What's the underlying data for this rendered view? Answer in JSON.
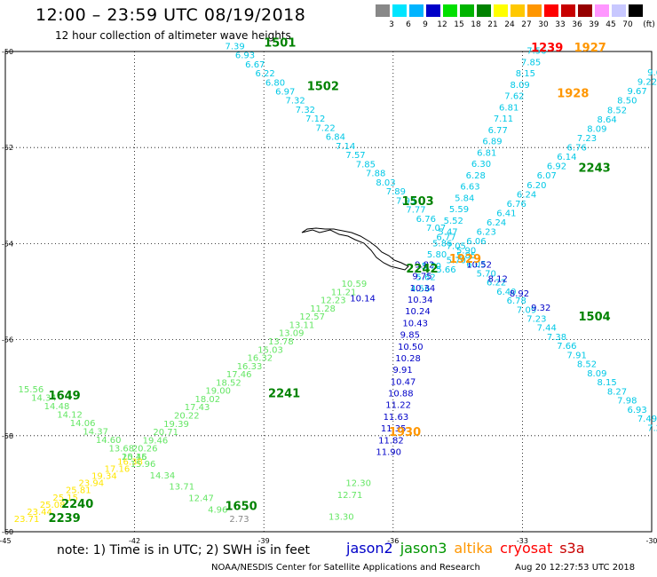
{
  "title": "12:00 – 23:59 UTC 08/19/2018",
  "subtitle": "12 hour collection of altimeter wave heights",
  "scale": {
    "unit": "(ft)",
    "bins": [
      {
        "label": "3",
        "color": "#888888"
      },
      {
        "label": "6",
        "color": "#00e5ff"
      },
      {
        "label": "9",
        "color": "#00b4ff"
      },
      {
        "label": "12",
        "color": "#0000c8"
      },
      {
        "label": "15",
        "color": "#00e000"
      },
      {
        "label": "18",
        "color": "#00b400"
      },
      {
        "label": "21",
        "color": "#008200"
      },
      {
        "label": "24",
        "color": "#ffff00"
      },
      {
        "label": "27",
        "color": "#ffc800"
      },
      {
        "label": "30",
        "color": "#ff9600"
      },
      {
        "label": "33",
        "color": "#ff0000"
      },
      {
        "label": "36",
        "color": "#c80000"
      },
      {
        "label": "39",
        "color": "#960000"
      },
      {
        "label": "45",
        "color": "#ff96ff"
      },
      {
        "label": "70",
        "color": "#c8c8ff"
      },
      {
        "label": "",
        "color": "#000000"
      }
    ]
  },
  "axes": {
    "lon_ticks": [
      "-45",
      "-42",
      "-39",
      "-36",
      "-33",
      "-30"
    ],
    "lat_ticks": [
      "-50",
      "-52",
      "-54",
      "-56",
      "-58",
      "-60"
    ]
  },
  "note": "note: 1) Time is in UTC; 2) SWH is in feet",
  "legend": [
    {
      "name": "jason2",
      "color": "#0000c8"
    },
    {
      "name": "jason3",
      "color": "#009600"
    },
    {
      "name": "altika",
      "color": "#ff9600"
    },
    {
      "name": "cryosat",
      "color": "#ff0000"
    },
    {
      "name": "s3a",
      "color": "#c80000"
    }
  ],
  "credit": "NOAA/NESDIS Center for Satellite Applications and Research",
  "credit_time": "Aug 20 12:27:53 UTC 2018",
  "time_labels": [
    {
      "text": "1501",
      "color": "#008200",
      "lon": -39.0,
      "lat": -49.9
    },
    {
      "text": "1502",
      "color": "#008200",
      "lon": -38.0,
      "lat": -50.8
    },
    {
      "text": "1503",
      "color": "#008200",
      "lon": -35.8,
      "lat": -53.2
    },
    {
      "text": "1239",
      "color": "#ff0000",
      "lon": -32.8,
      "lat": -50.0
    },
    {
      "text": "1927",
      "color": "#ff9600",
      "lon": -31.8,
      "lat": -50.0
    },
    {
      "text": "1928",
      "color": "#ff9600",
      "lon": -32.2,
      "lat": -50.95
    },
    {
      "text": "2243",
      "color": "#008200",
      "lon": -31.7,
      "lat": -52.5
    },
    {
      "text": "2242",
      "color": "#008200",
      "lon": -35.7,
      "lat": -54.6
    },
    {
      "text": "1929",
      "color": "#ff9600",
      "lon": -34.7,
      "lat": -54.4
    },
    {
      "text": "1504",
      "color": "#008200",
      "lon": -31.7,
      "lat": -55.6
    },
    {
      "text": "2241",
      "color": "#008200",
      "lon": -38.9,
      "lat": -57.2
    },
    {
      "text": "1930",
      "color": "#ff9600",
      "lon": -36.1,
      "lat": -58.0
    },
    {
      "text": "1649",
      "color": "#008200",
      "lon": -44.0,
      "lat": -57.25
    },
    {
      "text": "2240",
      "color": "#008200",
      "lon": -43.7,
      "lat": -59.5
    },
    {
      "text": "2239",
      "color": "#008200",
      "lon": -44.0,
      "lat": -59.8
    },
    {
      "text": "1650",
      "color": "#008200",
      "lon": -39.9,
      "lat": -59.55
    }
  ],
  "tracks": [
    {
      "name": "track-1501",
      "color": "#00c8e6",
      "start": [
        -39.9,
        -49.95
      ],
      "end": [
        -30.1,
        -57.9
      ],
      "values": [
        "7.39",
        "6.93",
        "6.67",
        "6.22",
        "6.80",
        "6.97",
        "7.32",
        "7.32",
        "7.12",
        "7.22",
        "6.84",
        "7.14",
        "7.57",
        "7.85",
        "7.88",
        "8.03",
        "7.89",
        "7.93",
        "7.77",
        "6.76",
        "7.07",
        "6.77",
        "7.05",
        "5.85",
        "6.05",
        "5.70",
        "6.22",
        "6.40",
        "6.78",
        "7.09",
        "7.23",
        "7.44",
        "7.38",
        "7.66",
        "7.91",
        "8.52",
        "8.09",
        "8.15",
        "8.27",
        "7.98",
        "6.93",
        "7.49",
        "7.21"
      ]
    },
    {
      "name": "track-1928",
      "color": "#00c8e6",
      "start": [
        -32.9,
        -50.05
      ],
      "end": [
        -35.6,
        -55.0
      ],
      "values": [
        "7.56",
        "7.85",
        "8.15",
        "8.09",
        "7.62",
        "6.81",
        "7.11",
        "6.77",
        "6.89",
        "6.81",
        "6.30",
        "6.28",
        "6.63",
        "5.84",
        "5.59",
        "5.52",
        "5.47",
        "5.86",
        "5.80",
        "5.70",
        "5.62",
        "4.56"
      ]
    },
    {
      "name": "track-2243",
      "color": "#00c8e6",
      "start": [
        -30.1,
        -50.5
      ],
      "end": [
        -35.0,
        -54.6
      ],
      "values": [
        "9.6",
        "9.22",
        "9.67",
        "8.50",
        "8.52",
        "8.64",
        "8.09",
        "7.23",
        "6.76",
        "6.14",
        "6.92",
        "6.07",
        "6.20",
        "6.24",
        "6.76",
        "6.41",
        "6.24",
        "6.23",
        "6.06",
        "5.90",
        "5.70",
        "5.66"
      ]
    },
    {
      "name": "track-1929",
      "color": "#0000c8",
      "start": [
        -35.5,
        -54.5
      ],
      "end": [
        -36.4,
        -58.4
      ],
      "values": [
        "9.82",
        "9.75",
        "10.34",
        "10.34",
        "10.24",
        "10.43",
        "9.85",
        "10.50",
        "10.28",
        "9.91",
        "10.47",
        "10.88",
        "11.22",
        "11.63",
        "11.35",
        "11.82",
        "11.90"
      ]
    },
    {
      "name": "track-1504",
      "color": "#0000c8",
      "start": [
        -34.3,
        -54.5
      ],
      "end": [
        -32.8,
        -55.4
      ],
      "values": [
        "10.52",
        "8.12",
        "8.92",
        "9.32"
      ]
    },
    {
      "name": "track-2241",
      "color": "#64e664",
      "start": [
        -37.2,
        -54.9
      ],
      "end": [
        -42.3,
        -58.5
      ],
      "values": [
        "10.59",
        "11.21",
        "12.23",
        "11.28",
        "12.57",
        "13.11",
        "13.09",
        "13.78",
        "15.03",
        "16.32",
        "16.33",
        "17.46",
        "18.52",
        "19.00",
        "18.02",
        "17.43",
        "20.22",
        "19.39",
        "20.71",
        "19.46",
        "20.26",
        "20.46"
      ]
    },
    {
      "name": "track-1649",
      "color": "#64e664",
      "start": [
        -44.7,
        -57.1
      ],
      "end": [
        -42.3,
        -58.5
      ],
      "values": [
        "15.56",
        "14.34",
        "14.48",
        "14.12",
        "14.06",
        "14.37",
        "14.60",
        "13.68",
        "15.15"
      ]
    },
    {
      "name": "track-2240",
      "color": "#ffe600",
      "start": [
        -42.4,
        -58.6
      ],
      "end": [
        -44.8,
        -59.8
      ],
      "values": [
        "16.38",
        "17.16",
        "19.34",
        "23.94",
        "25.81",
        "25.15",
        "25.08",
        "23.44",
        "23.71"
      ]
    },
    {
      "name": "track-1650",
      "color": "#64e664",
      "start": [
        -42.1,
        -58.65
      ],
      "end": [
        -40.3,
        -59.6
      ],
      "values": [
        "15.96",
        "14.34",
        "13.71",
        "12.47",
        "4.96"
      ]
    }
  ],
  "loose_values": [
    {
      "text": "12.30",
      "color": "#64e664",
      "lon": -37.1,
      "lat": -59.05
    },
    {
      "text": "12.71",
      "color": "#64e664",
      "lon": -37.3,
      "lat": -59.3
    },
    {
      "text": "13.30",
      "color": "#64e664",
      "lon": -37.5,
      "lat": -59.75
    },
    {
      "text": "2.73",
      "color": "#888888",
      "lon": -39.8,
      "lat": -59.8
    },
    {
      "text": "10.14",
      "color": "#0000c8",
      "lon": -37.0,
      "lat": -55.2
    }
  ]
}
